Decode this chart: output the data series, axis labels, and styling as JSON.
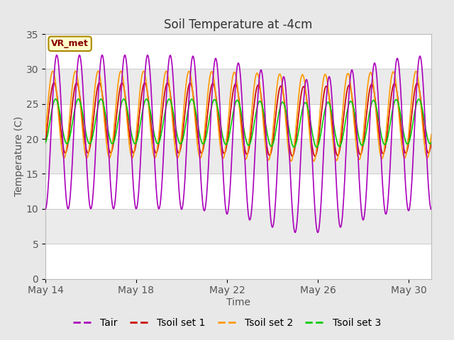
{
  "title": "Soil Temperature at -4cm",
  "xlabel": "Time",
  "ylabel": "Temperature (C)",
  "ylim": [
    0,
    35
  ],
  "yticks": [
    0,
    5,
    10,
    15,
    20,
    25,
    30,
    35
  ],
  "xtick_labels": [
    "May 14",
    "May 18",
    "May 22",
    "May 26",
    "May 30"
  ],
  "xtick_positions": [
    0,
    4,
    8,
    12,
    16
  ],
  "figure_bg": "#e8e8e8",
  "plot_bg": "#ffffff",
  "band_colors": [
    "#ffffff",
    "#ebebeb",
    "#ffffff",
    "#ebebeb",
    "#ffffff",
    "#ebebeb",
    "#ffffff"
  ],
  "legend_entries": [
    "Tair",
    "Tsoil set 1",
    "Tsoil set 2",
    "Tsoil set 3"
  ],
  "line_colors": [
    "#aa00bb",
    "#cc0000",
    "#ff9900",
    "#00cc00"
  ],
  "annotation_text": "VR_met",
  "annotation_bg": "#ffffcc",
  "annotation_border": "#aa8800",
  "title_fontsize": 12,
  "label_fontsize": 10,
  "tick_fontsize": 10,
  "tick_color": "#555555"
}
